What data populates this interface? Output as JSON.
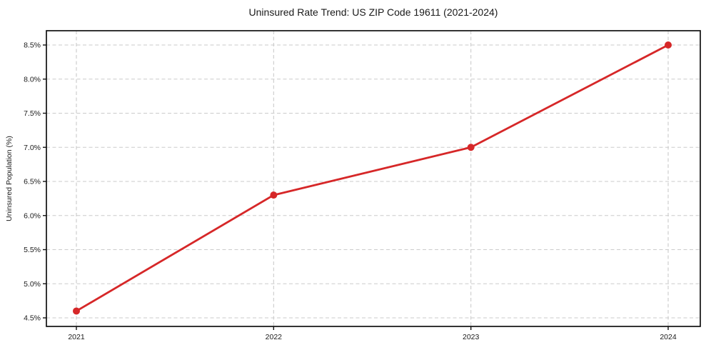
{
  "chart_data": {
    "type": "line",
    "title": "Uninsured Rate Trend: US ZIP Code 19611 (2021-2024)",
    "ylabel": "Uninsured Population (%)",
    "xlabel": "",
    "x": [
      "2021",
      "2022",
      "2023",
      "2024"
    ],
    "values": [
      4.6,
      6.3,
      7.0,
      8.5
    ],
    "ylim": [
      4.5,
      8.5
    ],
    "ytick_step": 0.5,
    "ytick_labels": [
      "4.5%",
      "5.0%",
      "5.5%",
      "6.0%",
      "6.5%",
      "7.0%",
      "7.5%",
      "8.0%",
      "8.5%"
    ],
    "grid": "dashed",
    "legend": "none",
    "line_color": "#d62728",
    "marker": "circle",
    "grid_color": "#cbcbcb",
    "axis_color": "#111111",
    "text_color": "#1a1a1a",
    "background_color": "#ffffff"
  }
}
